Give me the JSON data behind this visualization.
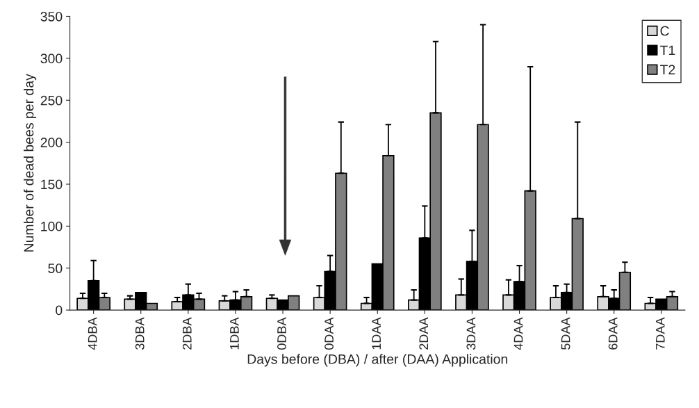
{
  "chart_data": {
    "type": "bar",
    "xlabel": "Days before (DBA) / after (DAA) Application",
    "ylabel": "Number of dead bees per day",
    "categories": [
      "4DBA",
      "3DBA",
      "2DBA",
      "1DBA",
      "0DBA",
      "0DAA",
      "1DAA",
      "2DAA",
      "3DAA",
      "4DAA",
      "5DAA",
      "6DAA",
      "7DAA"
    ],
    "series": [
      {
        "name": "C",
        "color": "#d9d9d9",
        "values": [
          14,
          13,
          10,
          11,
          14,
          15,
          8,
          12,
          18,
          18,
          15,
          16,
          8
        ],
        "errors": [
          [
            14,
            20
          ],
          [
            13,
            17
          ],
          [
            10,
            15
          ],
          [
            11,
            17
          ],
          [
            14,
            18
          ],
          [
            15,
            29
          ],
          [
            8,
            15
          ],
          [
            12,
            24
          ],
          [
            18,
            37
          ],
          [
            18,
            36
          ],
          [
            15,
            29
          ],
          [
            16,
            29
          ],
          [
            8,
            15
          ]
        ]
      },
      {
        "name": "T1",
        "color": "#000000",
        "values": [
          35,
          21,
          18,
          12,
          12,
          46,
          55,
          86,
          58,
          34,
          21,
          14,
          13
        ],
        "errors": [
          [
            35,
            59
          ],
          null,
          [
            18,
            31
          ],
          [
            12,
            22
          ],
          null,
          [
            46,
            65
          ],
          null,
          [
            86,
            124
          ],
          [
            58,
            95
          ],
          [
            34,
            53
          ],
          [
            21,
            31
          ],
          [
            14,
            24
          ],
          null
        ]
      },
      {
        "name": "T2",
        "color": "#808080",
        "values": [
          15,
          8,
          13,
          16,
          17,
          163,
          184,
          235,
          221,
          142,
          109,
          45,
          16
        ],
        "errors": [
          [
            15,
            20
          ],
          null,
          [
            13,
            20
          ],
          [
            16,
            24
          ],
          null,
          [
            163,
            224
          ],
          [
            184,
            221
          ],
          [
            235,
            320
          ],
          [
            221,
            340
          ],
          [
            142,
            290
          ],
          [
            109,
            224
          ],
          [
            45,
            57
          ],
          [
            16,
            22
          ]
        ]
      }
    ],
    "ylim": [
      0,
      350
    ],
    "yticks": [
      0,
      50,
      100,
      150,
      200,
      250,
      300,
      350
    ],
    "legend": "top right",
    "grid": false
  }
}
